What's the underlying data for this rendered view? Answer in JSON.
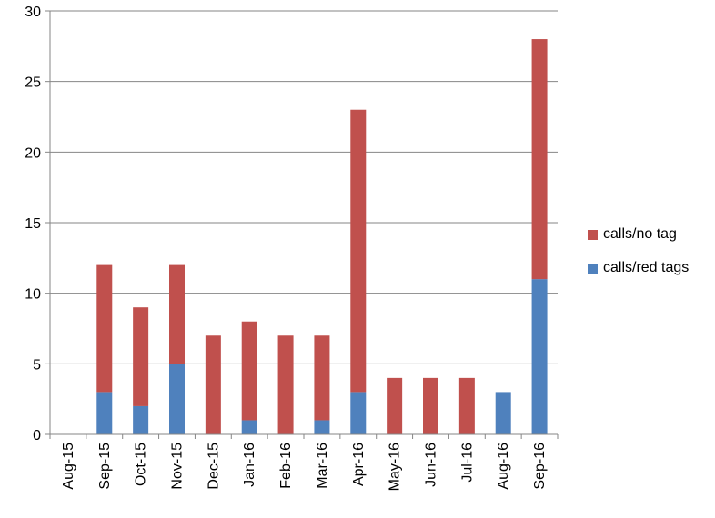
{
  "chart_data": {
    "type": "bar",
    "stacked": true,
    "categories": [
      "Aug-15",
      "Sep-15",
      "Oct-15",
      "Nov-15",
      "Dec-15",
      "Jan-16",
      "Feb-16",
      "Mar-16",
      "Apr-16",
      "May-16",
      "Jun-16",
      "Jul-16",
      "Aug-16",
      "Sep-16"
    ],
    "series": [
      {
        "name": "calls/red tags",
        "color": "#4F81BD",
        "values": [
          0,
          3,
          2,
          5,
          0,
          1,
          0,
          1,
          3,
          0,
          0,
          0,
          3,
          11
        ]
      },
      {
        "name": "calls/no tag",
        "color": "#C0504D",
        "values": [
          0,
          9,
          7,
          7,
          7,
          7,
          7,
          6,
          20,
          4,
          4,
          4,
          0,
          17
        ]
      }
    ],
    "y_ticks": [
      "0",
      "5",
      "10",
      "15",
      "20",
      "25",
      "30"
    ],
    "ylim": [
      0,
      30
    ],
    "grid": true,
    "legend_position": "right",
    "title": "",
    "xlabel": "",
    "ylabel": ""
  },
  "legend": {
    "items": [
      {
        "label": "calls/no tag",
        "color": "#C0504D"
      },
      {
        "label": "calls/red tags",
        "color": "#4F81BD"
      }
    ]
  }
}
